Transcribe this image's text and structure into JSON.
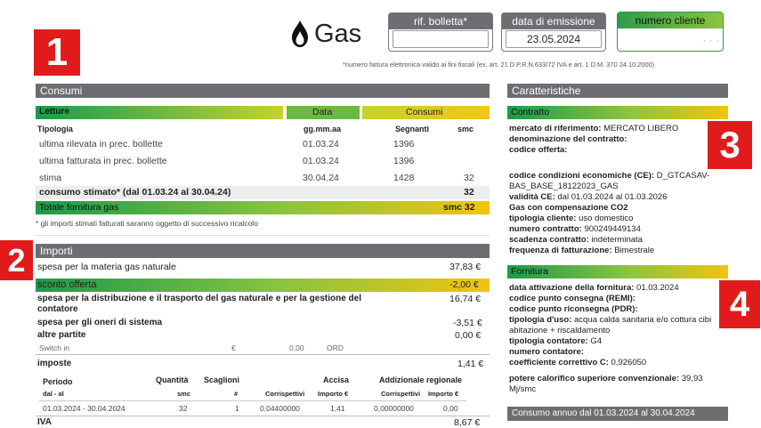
{
  "header": {
    "gas_label": "Gas",
    "rif_bolletta_label": "rif. bolletta*",
    "rif_bolletta_value": "",
    "data_emissione_label": "data di emissione",
    "data_emissione_value": "23.05.2024",
    "numero_cliente_label": "numero cliente",
    "numero_cliente_value": "· · ·",
    "footnote": "*numero fattura elettronica valido ai fini fiscali (ex. art. 21 D.P.R.N.633/72 IVA e art. 1 D.M. 370 24.10.2000)"
  },
  "markers": [
    "1",
    "2",
    "3",
    "4"
  ],
  "consumi": {
    "title": "Consumi",
    "col_letture": "Letture",
    "col_data": "Data",
    "col_consumi": "Consumi",
    "sub_tipologia": "Tipologia",
    "sub_data": "gg.mm.aa",
    "sub_segnanti": "Segnanti",
    "sub_smc": "smc",
    "rows": [
      {
        "label": "ultima rilevata in prec. bollette",
        "data": "01.03.24",
        "segnanti": "1396",
        "smc": ""
      },
      {
        "label": "ultima fatturata in prec. bollette",
        "data": "01.03.24",
        "segnanti": "1396",
        "smc": ""
      },
      {
        "label": "stima",
        "data": "30.04.24",
        "segnanti": "1428",
        "smc": "32"
      }
    ],
    "stimato_label": "consumo stimato* (dal 01.03.24 al 30.04.24)",
    "stimato_value": "32",
    "totale_label": "Totale fornitura gas",
    "totale_value": "smc 32",
    "note": "* gli importi stimati fatturati saranno oggetto di successivo ricalcolo"
  },
  "importi": {
    "title": "Importi",
    "materia_label": "spesa per la materia gas naturale",
    "materia_value": "37,83 €",
    "sconto_label": "sconto offerta",
    "sconto_value": "-2,00 €",
    "distribuzione_label_1": "spesa per la distribuzione e il trasporto del gas naturale e per la gestione del",
    "distribuzione_label_2": "contatore",
    "distribuzione_value": "16,74 €",
    "oneri_label": "spesa per gli oneri di sistema",
    "oneri_value": "-3,51 €",
    "altre_label": "altre partite",
    "altre_value": "0,00 €",
    "switch_label": "Switch in",
    "switch_currency": "€",
    "switch_amount": "0,00",
    "switch_code": "ORD",
    "imposte_label": "imposte",
    "imposte_value": "1,41 €",
    "tax_head": {
      "periodo": "Periodo",
      "periodo_sub": "dal - al",
      "quantita": "Quantità",
      "quantita_sub": "smc",
      "scaglioni": "Scaglioni",
      "scaglioni_sub": "#",
      "accisa": "Accisa",
      "corrispettivi": "Corrispettivi",
      "importo": "Importo €",
      "addizionale": "Addizionale regionale",
      "corrispettivi2": "Corrispettivi",
      "importo2": "Importo €"
    },
    "tax_row": {
      "periodo": "01.03.2024 - 30.04.2024",
      "quantita": "32",
      "scaglioni": "1",
      "corrispettivi": "0,04400000",
      "importo": "1,41",
      "corrispettivi2": "0,00000000",
      "importo2": "0,00"
    },
    "iva_label": "IVA",
    "iva_value": "8,67 €"
  },
  "caratteristiche": {
    "title": "Caratteristiche",
    "contratto_title": "Contratto",
    "lines": [
      {
        "k": "mercato di riferimento:",
        "v": " MERCATO LIBERO"
      },
      {
        "k": "denominazione del contratto:",
        "v": ""
      },
      {
        "k": "codice offerta:",
        "v": ""
      },
      {
        "k": "codice condizioni economiche (CE):",
        "v": " D_GTCASAV-"
      },
      {
        "k": "",
        "v": "BAS_BASE_18122023_GAS"
      },
      {
        "k": "validità CE:",
        "v": " dal 01.03.2024 al 01.03.2026"
      },
      {
        "k": "Gas con compensazione CO2",
        "v": ""
      },
      {
        "k": "tipologia cliente:",
        "v": " uso domestico"
      },
      {
        "k": "numero contratto:",
        "v": " 900249449134"
      },
      {
        "k": "scadenza contratto:",
        "v": " indeterminata"
      },
      {
        "k": "frequenza di fatturazione:",
        "v": " Bimestrale"
      }
    ],
    "fornitura_title": "Fornitura",
    "fornitura_lines": [
      {
        "k": "data attivazione della fornitura:",
        "v": " 01.03.2024"
      },
      {
        "k": "codice punto consegna (REMI):",
        "v": ""
      },
      {
        "k": "codice punto riconsegna (PDR):",
        "v": ""
      },
      {
        "k": "tipologia d'uso:",
        "v": " acqua calda sanitaria e/o cottura cibi"
      },
      {
        "k": "",
        "v": "abitazione + riscaldamento"
      },
      {
        "k": "tipologia contatore:",
        "v": " G4"
      },
      {
        "k": "numero contatore:",
        "v": ""
      },
      {
        "k": "coefficiente correttivo C:",
        "v": " 0,926050"
      },
      {
        "k": "potere calorifico superiore convenzionale:",
        "v": " 39,93"
      },
      {
        "k": "",
        "v": "Mj/smc"
      }
    ],
    "consumo_annuo_title": "Consumo annuo dal 01.03.2024 al 30.04.2024"
  }
}
